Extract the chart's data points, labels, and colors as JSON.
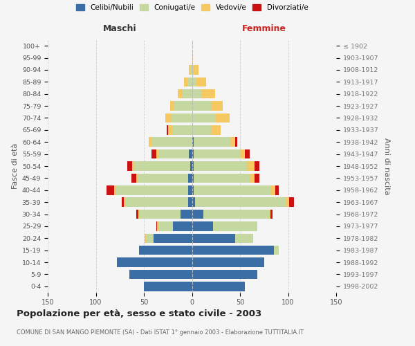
{
  "age_groups": [
    "0-4",
    "5-9",
    "10-14",
    "15-19",
    "20-24",
    "25-29",
    "30-34",
    "35-39",
    "40-44",
    "45-49",
    "50-54",
    "55-59",
    "60-64",
    "65-69",
    "70-74",
    "75-79",
    "80-84",
    "85-89",
    "90-94",
    "95-99",
    "100+"
  ],
  "birth_years": [
    "1998-2002",
    "1993-1997",
    "1988-1992",
    "1983-1987",
    "1978-1982",
    "1973-1977",
    "1968-1972",
    "1963-1967",
    "1958-1962",
    "1953-1957",
    "1948-1952",
    "1943-1947",
    "1938-1942",
    "1933-1937",
    "1928-1932",
    "1923-1927",
    "1918-1922",
    "1913-1917",
    "1908-1912",
    "1903-1907",
    "≤ 1902"
  ],
  "males": {
    "celibe": [
      50,
      65,
      78,
      55,
      40,
      20,
      12,
      4,
      4,
      4,
      2,
      3,
      0,
      0,
      0,
      0,
      0,
      0,
      0,
      0,
      0
    ],
    "coniugato": [
      0,
      0,
      0,
      0,
      8,
      15,
      42,
      65,
      75,
      52,
      58,
      32,
      42,
      20,
      22,
      18,
      10,
      5,
      2,
      0,
      0
    ],
    "vedovo": [
      0,
      0,
      0,
      0,
      1,
      1,
      2,
      2,
      2,
      2,
      2,
      2,
      3,
      5,
      6,
      5,
      5,
      3,
      1,
      0,
      0
    ],
    "divorziato": [
      0,
      0,
      0,
      0,
      0,
      1,
      2,
      2,
      8,
      5,
      5,
      5,
      0,
      1,
      0,
      0,
      0,
      0,
      0,
      0,
      0
    ]
  },
  "females": {
    "nubile": [
      55,
      68,
      75,
      85,
      45,
      22,
      12,
      3,
      2,
      2,
      2,
      2,
      2,
      0,
      0,
      0,
      0,
      0,
      0,
      0,
      0
    ],
    "coniugata": [
      0,
      0,
      0,
      5,
      18,
      45,
      68,
      95,
      80,
      58,
      55,
      48,
      38,
      20,
      25,
      20,
      10,
      5,
      2,
      0,
      0
    ],
    "vedova": [
      0,
      0,
      0,
      0,
      1,
      1,
      2,
      3,
      5,
      5,
      8,
      5,
      5,
      10,
      14,
      12,
      14,
      10,
      5,
      1,
      0
    ],
    "divorziata": [
      0,
      0,
      0,
      0,
      0,
      0,
      2,
      5,
      3,
      5,
      5,
      5,
      2,
      0,
      0,
      0,
      0,
      0,
      0,
      0,
      0
    ]
  },
  "colors": {
    "celibe": "#3a6ea5",
    "coniugato": "#c5d8a0",
    "vedovo": "#f5c862",
    "divorziato": "#cc1111"
  },
  "title": "Popolazione per età, sesso e stato civile - 2003",
  "subtitle": "COMUNE DI SAN MANGO PIEMONTE (SA) - Dati ISTAT 1° gennaio 2003 - Elaborazione TUTTITALIA.IT",
  "xlabel_left": "Maschi",
  "xlabel_right": "Femmine",
  "ylabel_left": "Fasce di età",
  "ylabel_right": "Anni di nascita",
  "xlim": 150,
  "background_color": "#f5f5f5",
  "grid_color": "#cccccc"
}
